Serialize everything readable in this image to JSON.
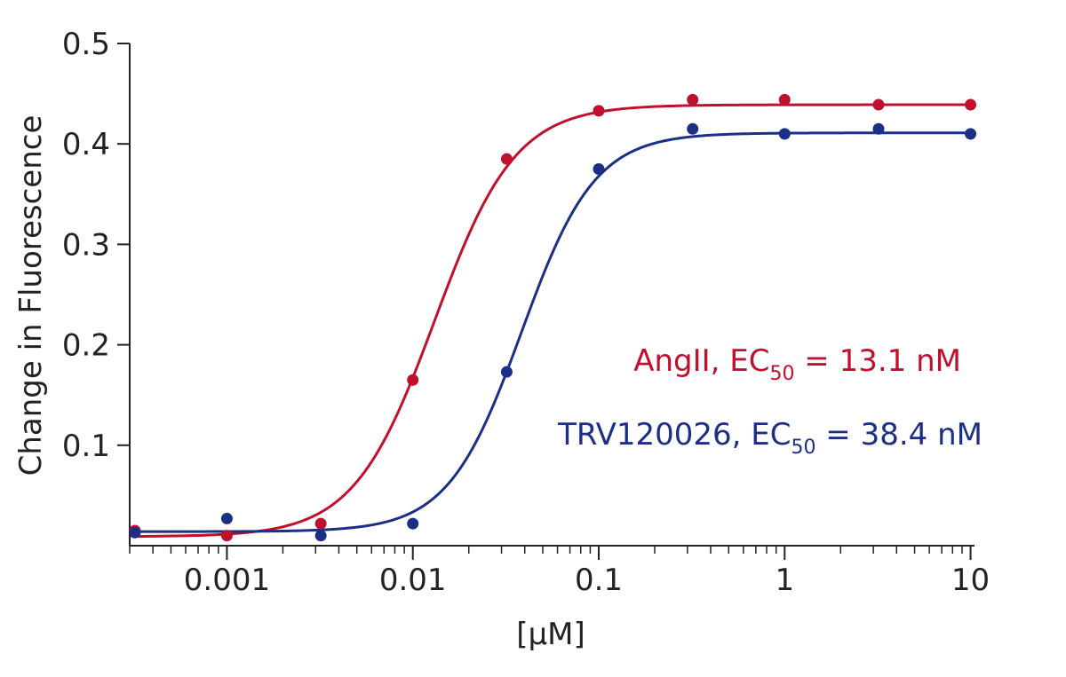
{
  "chart_data": {
    "type": "scatter",
    "title": "",
    "xlabel": "[µM]",
    "ylabel": "Change in Fluorescence",
    "x_scale": "log",
    "xlim": [
      0.0003,
      10.5
    ],
    "ylim": [
      0.0,
      0.5
    ],
    "x_ticks": [
      0.001,
      0.01,
      0.1,
      1,
      10
    ],
    "x_tick_labels": [
      "0.001",
      "0.01",
      "0.1",
      "1",
      "10"
    ],
    "y_ticks": [
      0.1,
      0.2,
      0.3,
      0.4,
      0.5
    ],
    "y_tick_labels": [
      "0.1",
      "0.2",
      "0.3",
      "0.4",
      "0.5"
    ],
    "grid": false,
    "legend_position": "center-right",
    "series": [
      {
        "name": "AngII",
        "color": "#c0102e",
        "points": [
          {
            "x": 0.00032,
            "y": 0.015
          },
          {
            "x": 0.001,
            "y": 0.01
          },
          {
            "x": 0.0032,
            "y": 0.022
          },
          {
            "x": 0.01,
            "y": 0.165
          },
          {
            "x": 0.032,
            "y": 0.385
          },
          {
            "x": 0.1,
            "y": 0.433
          },
          {
            "x": 0.32,
            "y": 0.444
          },
          {
            "x": 1,
            "y": 0.444
          },
          {
            "x": 3.2,
            "y": 0.439
          },
          {
            "x": 10,
            "y": 0.439
          }
        ],
        "fit": {
          "bottom": 0.009,
          "top": 0.439,
          "ec50": 0.0131,
          "hill": 2.0
        },
        "label_prefix": "AngII, EC",
        "label_sub": "50",
        "label_suffix": " = 13.1 nM"
      },
      {
        "name": "TRV120026",
        "color": "#1b2f86",
        "points": [
          {
            "x": 0.00032,
            "y": 0.013
          },
          {
            "x": 0.001,
            "y": 0.027
          },
          {
            "x": 0.0032,
            "y": 0.01
          },
          {
            "x": 0.01,
            "y": 0.022
          },
          {
            "x": 0.032,
            "y": 0.173
          },
          {
            "x": 0.1,
            "y": 0.375
          },
          {
            "x": 0.32,
            "y": 0.415
          },
          {
            "x": 1,
            "y": 0.41
          },
          {
            "x": 3.2,
            "y": 0.415
          },
          {
            "x": 10,
            "y": 0.41
          }
        ],
        "fit": {
          "bottom": 0.014,
          "top": 0.411,
          "ec50": 0.0384,
          "hill": 2.2
        },
        "label_prefix": "TRV120026, EC",
        "label_sub": "50",
        "label_suffix": " = 38.4 nM"
      }
    ]
  }
}
